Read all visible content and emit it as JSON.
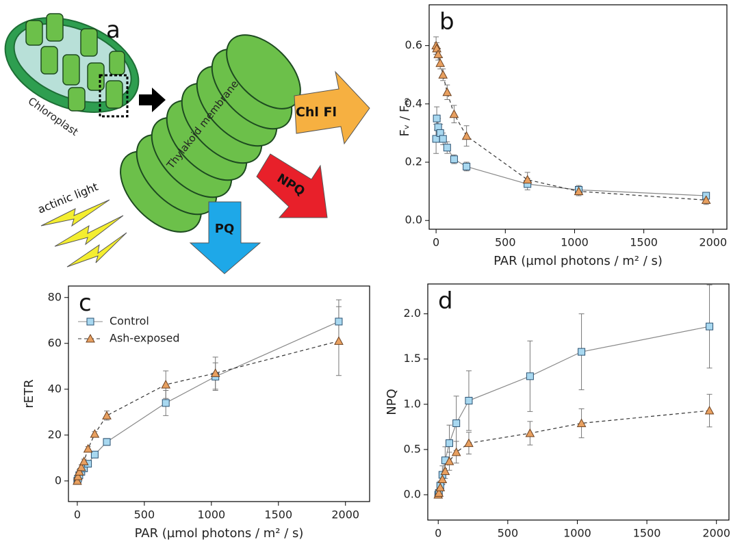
{
  "diagram": {
    "panel_label": "a",
    "chloroplast": "Chloroplast",
    "thylakoid": "Thylakoid membrane",
    "arrow_fluorescence": "Chl Fl",
    "arrow_npq": "NPQ",
    "arrow_pq": "PQ",
    "light": "actinic light"
  },
  "chart_data": [
    {
      "type": "line",
      "panel_label": "b",
      "y_label": "Fᵥ / Fₘ",
      "y_label_color": "#f0a040",
      "x_label": "PAR (µmol photons / m² / s)",
      "xlim": [
        -50,
        2100
      ],
      "ylim": [
        -0.03,
        0.74
      ],
      "xticks": [
        0,
        500,
        1000,
        1500,
        2000
      ],
      "yticks": [
        {
          "value": 0,
          "label": "0.0"
        },
        0.2,
        0.4,
        0.6
      ],
      "x": [
        0,
        5,
        15,
        30,
        50,
        80,
        130,
        220,
        660,
        1030,
        1950
      ],
      "series": [
        {
          "name": "Control",
          "color": "#a8d8f0",
          "marker": "square",
          "line_style": "solid",
          "values": [
            0.28,
            0.35,
            0.32,
            0.3,
            0.28,
            0.25,
            0.21,
            0.185,
            0.125,
            0.105,
            0.085
          ],
          "errors": [
            0.05,
            0.04,
            0.03,
            0.03,
            0.02,
            0.02,
            0.015,
            0.015,
            0.02,
            0.015,
            0.01
          ]
        },
        {
          "name": "Ash-exposed",
          "color": "#e8a060",
          "marker": "triangle",
          "line_style": "dashed",
          "values": [
            0.6,
            0.59,
            0.57,
            0.54,
            0.5,
            0.44,
            0.365,
            0.29,
            0.14,
            0.1,
            0.07
          ],
          "errors": [
            0.03,
            0.02,
            0.02,
            0.02,
            0.02,
            0.025,
            0.03,
            0.035,
            0.025,
            0.015,
            0.015
          ]
        }
      ]
    },
    {
      "type": "line",
      "panel_label": "c",
      "y_label": "rETR",
      "y_label_color": "#1ea0dc",
      "x_label": "PAR (µmol photons / m² / s)",
      "xlim": [
        -66,
        2180
      ],
      "ylim": [
        -9,
        85
      ],
      "xticks": [
        0,
        500,
        1000,
        1500,
        2000
      ],
      "yticks": [
        0,
        20,
        40,
        60,
        80
      ],
      "legend": "upper left",
      "x": [
        0,
        5,
        15,
        30,
        50,
        80,
        130,
        220,
        660,
        1030,
        1950
      ],
      "series": [
        {
          "name": "Control",
          "color": "#a8d8f0",
          "marker": "square",
          "line_style": "solid",
          "values": [
            0,
            1,
            2.5,
            4,
            5.5,
            7.5,
            11.5,
            17,
            34,
            45.5,
            69.5
          ],
          "errors": [
            0.5,
            0.5,
            0.5,
            0.5,
            1,
            1,
            1,
            1.5,
            5.5,
            6,
            9.5
          ]
        },
        {
          "name": "Ash-exposed",
          "color": "#e8a060",
          "marker": "triangle",
          "line_style": "dashed",
          "values": [
            0,
            2,
            4,
            6,
            8.5,
            14,
            20.5,
            28.5,
            42,
            47,
            61
          ],
          "errors": [
            0.5,
            0.5,
            1,
            1,
            1,
            1,
            1,
            2,
            6,
            7,
            15
          ]
        }
      ]
    },
    {
      "type": "line",
      "panel_label": "d",
      "y_label": "NPQ",
      "y_label_color": "#f05030",
      "x_label": "PAR (µmol photons / m² / s)",
      "xlim": [
        -75,
        2090
      ],
      "ylim": [
        -0.28,
        2.33
      ],
      "xticks": [
        0,
        500,
        1000,
        1500,
        2000
      ],
      "yticks": [
        {
          "value": 0,
          "label": "0.0"
        },
        0.5,
        {
          "value": 1,
          "label": "1.0"
        },
        1.5,
        {
          "value": 2,
          "label": "2.0"
        }
      ],
      "x": [
        0,
        5,
        15,
        30,
        50,
        80,
        130,
        220,
        660,
        1030,
        1950
      ],
      "series": [
        {
          "name": "Control",
          "color": "#a8d8f0",
          "marker": "square",
          "line_style": "solid",
          "values": [
            0,
            0.02,
            0.1,
            0.22,
            0.38,
            0.57,
            0.79,
            1.04,
            1.31,
            1.58,
            1.86
          ],
          "errors": [
            0.01,
            0.02,
            0.05,
            0.1,
            0.15,
            0.2,
            0.3,
            0.33,
            0.39,
            0.42,
            0.46
          ]
        },
        {
          "name": "Ash-exposed",
          "color": "#e8a060",
          "marker": "triangle",
          "line_style": "dashed",
          "values": [
            0,
            0.02,
            0.08,
            0.17,
            0.26,
            0.37,
            0.47,
            0.57,
            0.68,
            0.79,
            0.93
          ],
          "errors": [
            0.01,
            0.02,
            0.04,
            0.06,
            0.08,
            0.1,
            0.12,
            0.12,
            0.13,
            0.16,
            0.18
          ]
        }
      ]
    }
  ]
}
